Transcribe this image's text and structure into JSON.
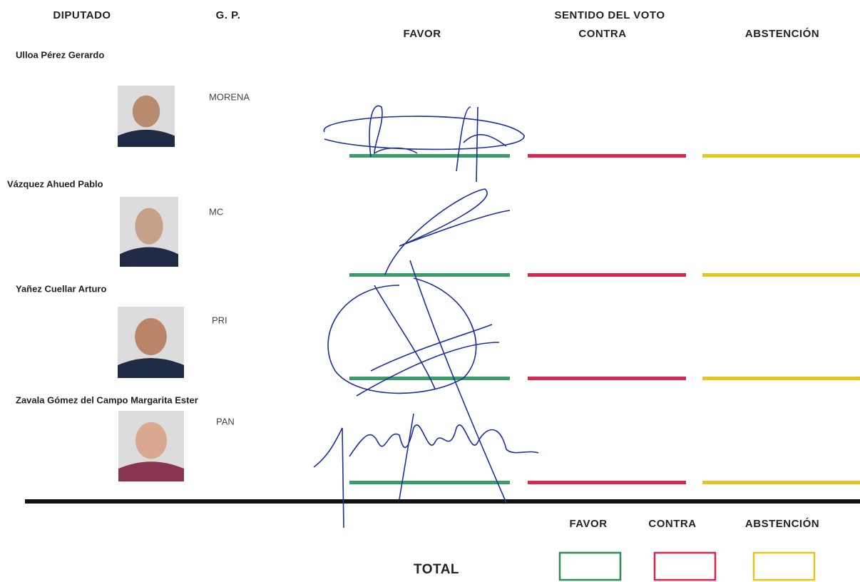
{
  "header": {
    "group_title": "SENTIDO DEL VOTO",
    "columns": [
      "DIPUTADO",
      "G. P.",
      "FAVOR",
      "CONTRA",
      "ABSTENCIÓN"
    ]
  },
  "rows": [
    {
      "name": "Ulloa Pérez Gerardo",
      "party": "MORENA"
    },
    {
      "name": "Vázquez Ahued Pablo",
      "party": "MC"
    },
    {
      "name": "Yañez Cuellar Arturo",
      "party": "PRI"
    },
    {
      "name": "Zavala Gómez del Campo Margarita Ester",
      "party": "PAN"
    }
  ],
  "totals": {
    "title": "TOTAL",
    "labels": [
      "FAVOR",
      "CONTRA",
      "ABSTENCIÓN"
    ]
  }
}
